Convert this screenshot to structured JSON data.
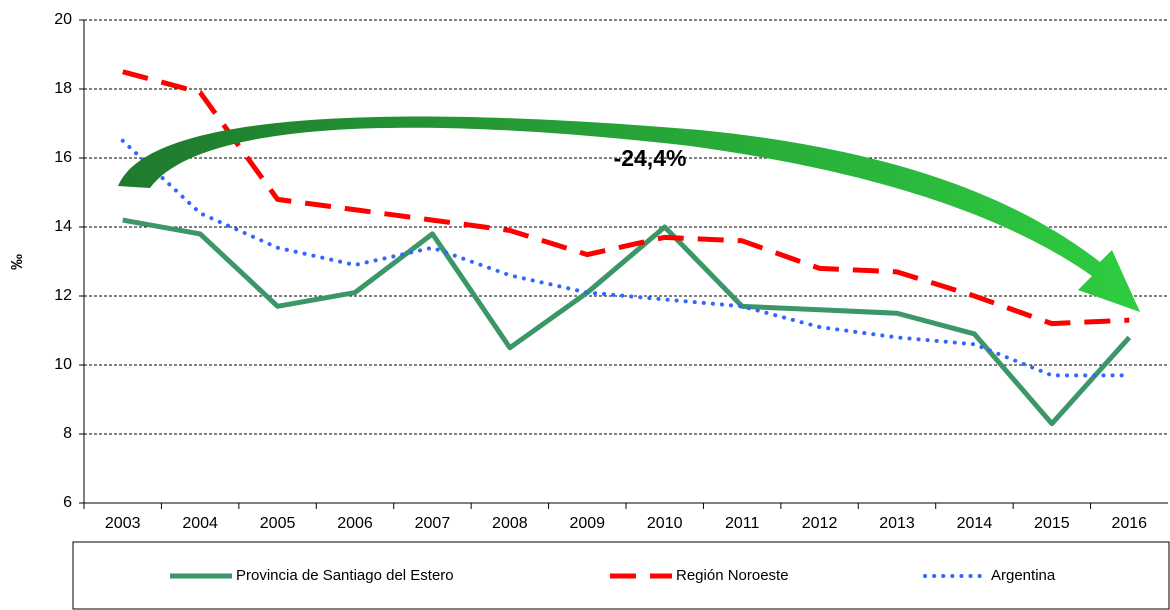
{
  "chart_data": {
    "type": "line",
    "y_label": "‰",
    "annotation": "-24,4%",
    "categories": [
      "2003",
      "2004",
      "2005",
      "2006",
      "2007",
      "2008",
      "2009",
      "2010",
      "2011",
      "2012",
      "2013",
      "2014",
      "2015",
      "2016"
    ],
    "series": [
      {
        "name": "Provincia de Santiago del Estero",
        "color": "#3b9668",
        "style": "solid",
        "values": [
          14.2,
          13.8,
          11.7,
          12.1,
          13.8,
          10.5,
          12.1,
          14.0,
          11.7,
          11.6,
          11.5,
          10.9,
          8.3,
          10.8
        ]
      },
      {
        "name": "Región Noroeste",
        "color": "#ff0000",
        "style": "dashed",
        "values": [
          18.5,
          17.9,
          14.8,
          14.5,
          14.2,
          13.9,
          13.2,
          13.7,
          13.6,
          12.8,
          12.7,
          12.0,
          11.2,
          11.3
        ]
      },
      {
        "name": "Argentina",
        "color": "#3366ff",
        "style": "dotted",
        "values": [
          16.5,
          14.4,
          13.4,
          12.9,
          13.4,
          12.6,
          12.1,
          11.9,
          11.7,
          11.1,
          10.8,
          10.6,
          9.7,
          9.7
        ]
      }
    ],
    "ylim": [
      6,
      20
    ],
    "yticks": [
      6,
      8,
      10,
      12,
      14,
      16,
      18,
      20
    ],
    "grid": true,
    "legend": "bottom"
  }
}
